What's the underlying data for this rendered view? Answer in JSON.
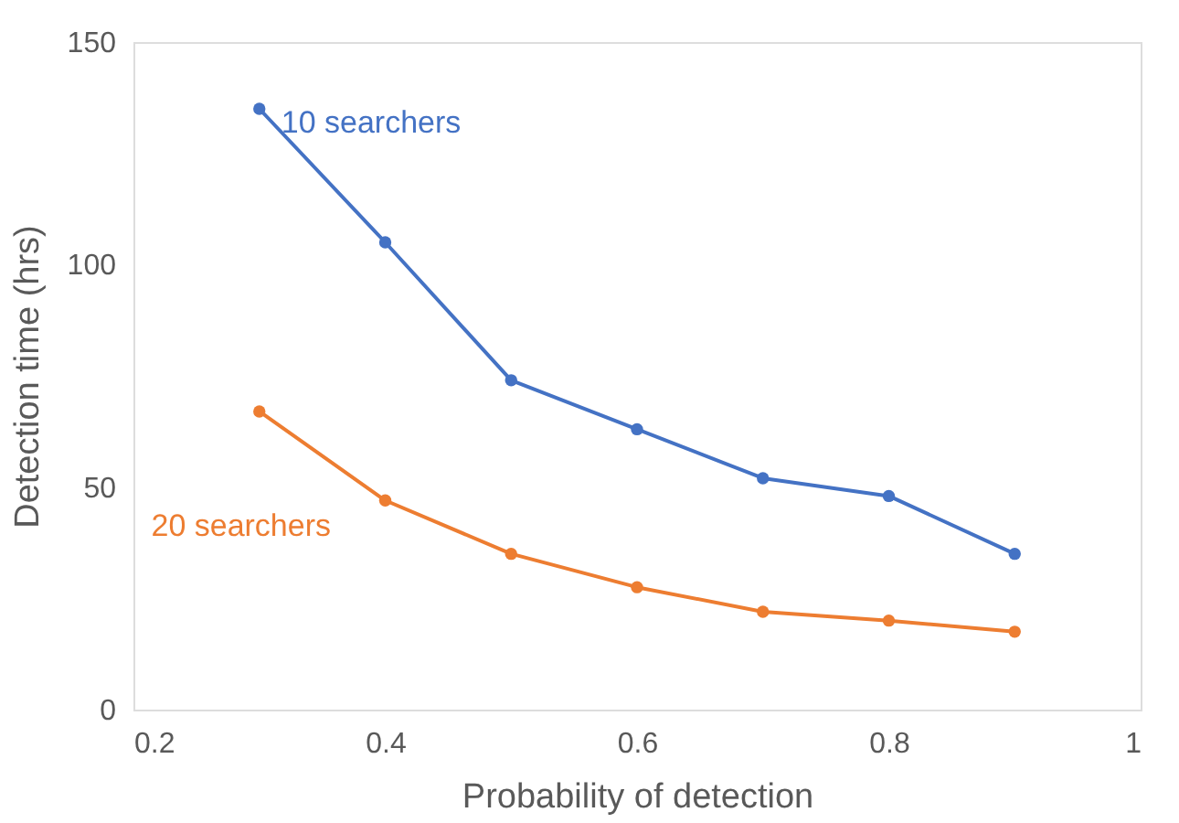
{
  "chart_data": {
    "type": "line",
    "xlabel": "Probability of detection",
    "ylabel": "Detection time (hrs)",
    "x": [
      0.3,
      0.4,
      0.5,
      0.6,
      0.7,
      0.8,
      0.9
    ],
    "series": [
      {
        "name": "10 searchers",
        "color": "#4472c4",
        "values": [
          135,
          105,
          74,
          63,
          52,
          48,
          35
        ]
      },
      {
        "name": "20 searchers",
        "color": "#ed7d31",
        "values": [
          67,
          47,
          35,
          27.5,
          22,
          20,
          17.5
        ]
      }
    ],
    "xlim": [
      0.2,
      1
    ],
    "xticks": [
      0.2,
      0.4,
      0.6,
      0.8,
      1
    ],
    "ylim": [
      0,
      150
    ],
    "yticks": [
      0,
      50,
      100,
      150
    ],
    "grid": false,
    "marker": "circle",
    "line_style": "solid"
  }
}
